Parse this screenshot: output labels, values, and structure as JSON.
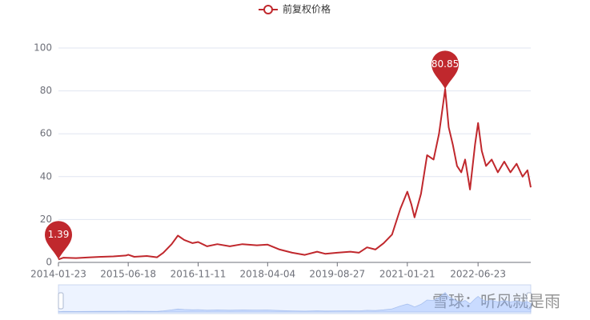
{
  "chart_data": {
    "type": "line",
    "series": [
      {
        "name": "前复权价格",
        "color": "#c0282d",
        "x": [
          "2014-01-23",
          "2014-03-01",
          "2014-06-01",
          "2014-09-01",
          "2014-12-01",
          "2015-03-01",
          "2015-06-01",
          "2015-06-18",
          "2015-08-01",
          "2015-11-01",
          "2016-01-15",
          "2016-03-01",
          "2016-05-01",
          "2016-06-16",
          "2016-08-01",
          "2016-10-01",
          "2016-11-11",
          "2017-01-15",
          "2017-04-01",
          "2017-07-01",
          "2017-10-01",
          "2018-01-15",
          "2018-04-04",
          "2018-07-01",
          "2018-10-01",
          "2019-01-01",
          "2019-04-01",
          "2019-06-01",
          "2019-08-27",
          "2019-12-01",
          "2020-02-01",
          "2020-04-01",
          "2020-06-01",
          "2020-08-01",
          "2020-10-01",
          "2020-12-01",
          "2021-01-21",
          "2021-02-20",
          "2021-03-15",
          "2021-05-01",
          "2021-06-15",
          "2021-08-01",
          "2021-09-10",
          "2021-10-25",
          "2021-11-20",
          "2021-12-20",
          "2022-01-20",
          "2022-02-20",
          "2022-03-20",
          "2022-04-25",
          "2022-06-01",
          "2022-06-23",
          "2022-07-20",
          "2022-08-20",
          "2022-10-01",
          "2022-11-15",
          "2023-01-01",
          "2023-02-15",
          "2023-04-01",
          "2023-05-15",
          "2023-06-20",
          "2023-07-14"
        ],
        "values": [
          1.39,
          2.2,
          2.0,
          2.3,
          2.6,
          2.8,
          3.2,
          3.6,
          2.6,
          3.0,
          2.4,
          4.5,
          8.5,
          12.5,
          10.5,
          9.0,
          9.5,
          7.5,
          8.5,
          7.5,
          8.5,
          8.0,
          8.3,
          6.0,
          4.5,
          3.5,
          5.0,
          4.0,
          4.5,
          5.0,
          4.5,
          7.0,
          6.0,
          9.0,
          13,
          25,
          33,
          27,
          21,
          32,
          50,
          48,
          60,
          80.85,
          63,
          55,
          45,
          42,
          48,
          34,
          55,
          65,
          52,
          45,
          48,
          42,
          47,
          42,
          46,
          40,
          43,
          35
        ]
      }
    ],
    "xlim": [
      "2014-01-23",
      "2023-07-14"
    ],
    "xticks": [
      "2014-01-23",
      "2015-06-18",
      "2016-11-11",
      "2018-04-04",
      "2019-08-27",
      "2021-01-21",
      "2022-06-23"
    ],
    "ylim": [
      0,
      100
    ],
    "yticks": [
      0,
      20,
      40,
      60,
      80,
      100
    ],
    "grid": true,
    "watermark": "雪球：听风就是雨"
  }
}
